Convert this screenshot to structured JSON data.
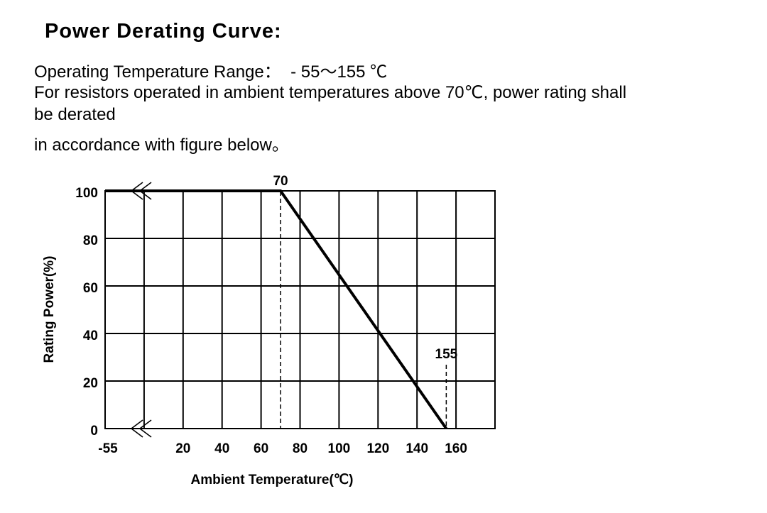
{
  "header": {
    "title": "Power Derating Curve:"
  },
  "paragraphs": [
    "Operating Temperature Range：  - 55～155 ℃",
    "For resistors operated in ambient temperatures above 70℃, power rating shall",
    "be derated",
    "in accordance with figure below。"
  ],
  "chart_data": {
    "type": "line",
    "x_label": "Ambient Temperature(℃)",
    "y_label": "Rating Power(%)",
    "x": [
      -55,
      70,
      155
    ],
    "values": [
      100,
      100,
      0
    ],
    "color": "#000000",
    "xlim": [
      -55,
      180
    ],
    "x_break": 0,
    "xticks": [
      -55,
      20,
      40,
      60,
      80,
      100,
      120,
      140,
      160
    ],
    "ylim": [
      0,
      100
    ],
    "yticks": [
      0,
      20,
      40,
      60,
      80,
      100
    ],
    "annotations": [
      70,
      155
    ],
    "grid": true
  }
}
